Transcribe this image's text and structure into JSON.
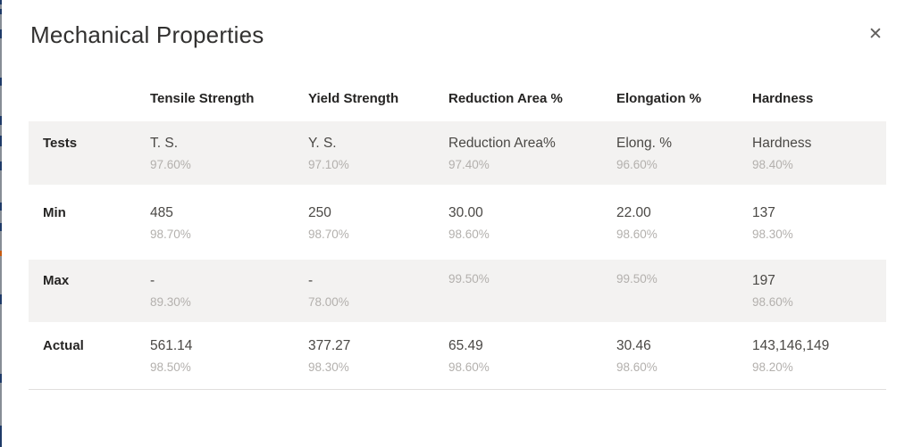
{
  "dialog": {
    "title": "Mechanical Properties",
    "close_icon": "✕"
  },
  "table": {
    "columns": [
      "",
      "Tensile Strength",
      "Yield Strength",
      "Reduction Area %",
      "Elongation %",
      "Hardness"
    ],
    "rows": [
      {
        "label": "Tests",
        "cells": [
          {
            "v": "T. S.",
            "p": "97.60%"
          },
          {
            "v": "Y. S.",
            "p": "97.10%"
          },
          {
            "v": "Reduction Area%",
            "p": "97.40%"
          },
          {
            "v": "Elong. %",
            "p": "96.60%"
          },
          {
            "v": "Hardness",
            "p": "98.40%"
          }
        ]
      },
      {
        "label": "Min",
        "cells": [
          {
            "v": "485",
            "p": "98.70%"
          },
          {
            "v": "250",
            "p": "98.70%"
          },
          {
            "v": "30.00",
            "p": "98.60%"
          },
          {
            "v": "22.00",
            "p": "98.60%"
          },
          {
            "v": "137",
            "p": "98.30%"
          }
        ]
      },
      {
        "label": "Max",
        "cells": [
          {
            "v": "-",
            "p": "89.30%"
          },
          {
            "v": "-",
            "p": "78.00%"
          },
          {
            "v": "",
            "p": "99.50%"
          },
          {
            "v": "",
            "p": "99.50%"
          },
          {
            "v": "197",
            "p": "98.60%"
          }
        ]
      },
      {
        "label": "Actual",
        "cells": [
          {
            "v": "561.14",
            "p": "98.50%"
          },
          {
            "v": "377.27",
            "p": "98.30%"
          },
          {
            "v": "65.49",
            "p": "98.60%"
          },
          {
            "v": "30.46",
            "p": "98.60%"
          },
          {
            "v": "143,146,149",
            "p": "98.20%"
          }
        ]
      }
    ]
  },
  "colors": {
    "row_band": "#f3f2f1",
    "title_text": "#323130",
    "header_text": "#252423",
    "value_text": "#4a4845",
    "percent_text": "#b3b0ad",
    "separator": "#e1dfdd",
    "close_icon": "#605e5c"
  }
}
